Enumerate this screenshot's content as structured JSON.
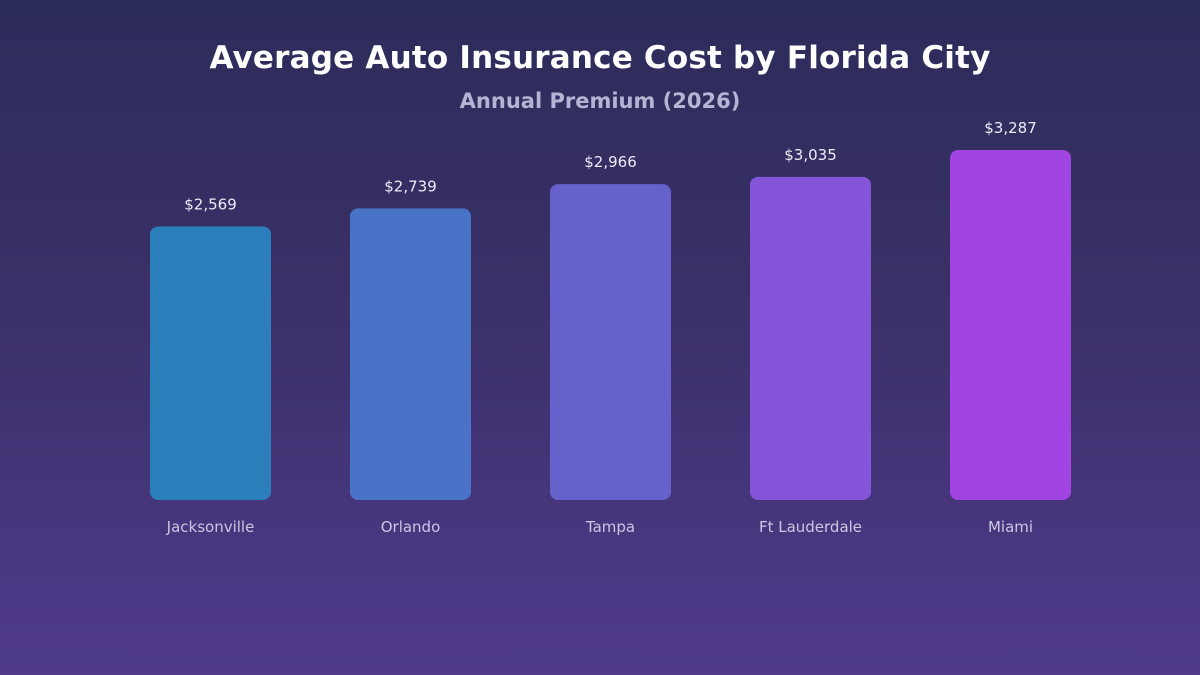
{
  "chart_data": {
    "type": "bar",
    "title": "Average Auto Insurance Cost by Florida City",
    "subtitle": "Annual Premium (2026)",
    "categories": [
      "Jacksonville",
      "Orlando",
      "Tampa",
      "Ft Lauderdale",
      "Miami"
    ],
    "values": [
      2569,
      2739,
      2966,
      3035,
      3287
    ],
    "value_labels": [
      "$2,569",
      "$2,739",
      "$2,966",
      "$3,035",
      "$3,287"
    ],
    "colors": [
      "#2a7fba",
      "#4873c6",
      "#6762cb",
      "#8454d9",
      "#a044e2"
    ],
    "xlabel": "",
    "ylabel": "",
    "ylim": [
      0,
      3287
    ],
    "grid": false,
    "legend": "none"
  }
}
